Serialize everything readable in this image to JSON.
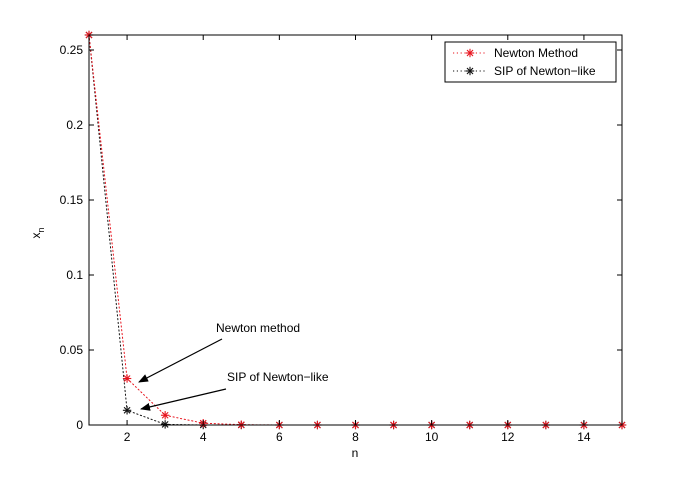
{
  "chart_data": {
    "type": "line",
    "title": "",
    "xlabel": "n",
    "ylabel": "x",
    "ylabel_subscript": "n",
    "xlim": [
      1,
      15
    ],
    "ylim": [
      0,
      0.26
    ],
    "x_ticks": [
      2,
      4,
      6,
      8,
      10,
      12,
      14
    ],
    "x_tick_labels": [
      "2",
      "4",
      "6",
      "8",
      "10",
      "12",
      "14"
    ],
    "y_ticks": [
      0,
      0.05,
      0.1,
      0.15,
      0.2,
      0.25
    ],
    "y_tick_labels": [
      "0",
      "0.05",
      "0.1",
      "0.15",
      "0.2",
      "0.25"
    ],
    "grid": false,
    "legend_position": "top-right",
    "series": [
      {
        "name": "Newton Method",
        "color": "#e8141e",
        "line_style": "dotted",
        "marker": "asterisk",
        "x": [
          1,
          2,
          3,
          4,
          5,
          6,
          7,
          8,
          9,
          10,
          11,
          12,
          13,
          14,
          15
        ],
        "values": [
          0.26,
          0.031,
          0.0065,
          0.0012,
          0.0002,
          0,
          0,
          0,
          0,
          0,
          0,
          0,
          0,
          0,
          0
        ]
      },
      {
        "name": "SIP of Newton−like",
        "color": "#111111",
        "line_style": "dotted",
        "marker": "asterisk",
        "x": [
          1,
          2,
          3,
          4,
          5,
          6,
          7,
          8,
          9,
          10,
          11,
          12,
          13,
          14,
          15
        ],
        "values": [
          0.26,
          0.0098,
          0.0004,
          0,
          0,
          0,
          0,
          0,
          0,
          0,
          0,
          0,
          0,
          0,
          0
        ]
      }
    ],
    "annotations": [
      {
        "label": "Newton method",
        "target_series": 0,
        "target_x": 2
      },
      {
        "label": "SIP of Newton−like",
        "target_series": 1,
        "target_x": 2
      }
    ]
  }
}
